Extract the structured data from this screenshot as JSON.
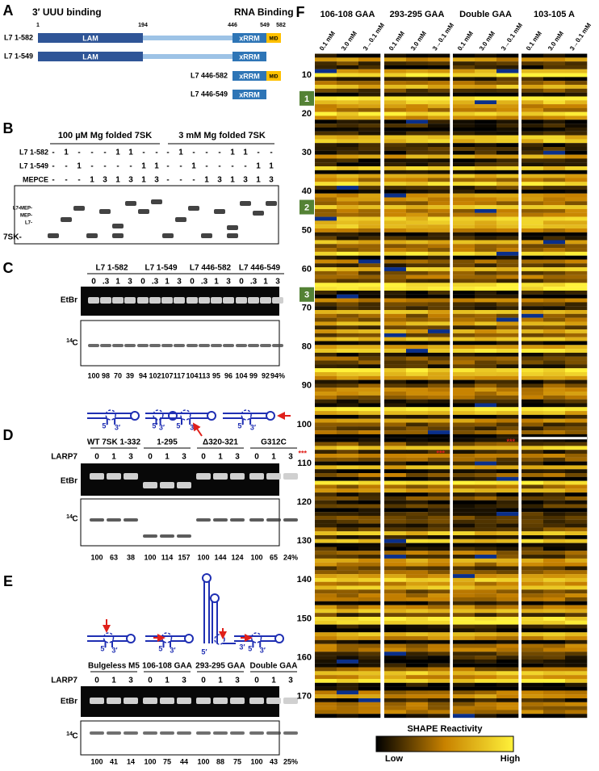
{
  "panelA": {
    "letter": "A",
    "left_label": "3′ UUU binding",
    "right_label": "RNA Binding",
    "positions": [
      "1",
      "194",
      "446",
      "549",
      "582"
    ],
    "constructs": [
      {
        "name": "L7 1-582",
        "domains": [
          "LAM",
          "xRRM",
          "MID"
        ]
      },
      {
        "name": "L7 1-549",
        "domains": [
          "LAM",
          "xRRM"
        ]
      },
      {
        "name": "L7 446-582",
        "domains": [
          "xRRM",
          "MID"
        ]
      },
      {
        "name": "L7 446-549",
        "domains": [
          "xRRM"
        ]
      }
    ]
  },
  "panelB": {
    "letter": "B",
    "groups": [
      "100 µM Mg folded 7SK",
      "3 mM Mg folded 7SK"
    ],
    "rows": [
      {
        "label": "L7 1-582",
        "cells": [
          "-",
          "1",
          "-",
          "-",
          "-",
          "1",
          "1",
          "-",
          "-",
          "-",
          "1",
          "-",
          "-",
          "-",
          "1",
          "1",
          "-",
          "-"
        ]
      },
      {
        "label": "L7 1-549",
        "cells": [
          "-",
          "-",
          "1",
          "-",
          "-",
          "-",
          "-",
          "1",
          "1",
          "-",
          "-",
          "1",
          "-",
          "-",
          "-",
          "-",
          "1",
          "1"
        ]
      },
      {
        "label": "MEPCE",
        "cells": [
          "-",
          "-",
          "-",
          "1",
          "3",
          "1",
          "3",
          "1",
          "3",
          "-",
          "-",
          "-",
          "1",
          "3",
          "1",
          "3",
          "1",
          "3"
        ]
      }
    ],
    "gel_labels": [
      "L7•MEP-",
      "MEP-",
      "L7-",
      "7SK-"
    ]
  },
  "panelC": {
    "letter": "C",
    "groups": [
      "L7 1-582",
      "L7 1-549",
      "L7 446-582",
      "L7 446-549"
    ],
    "lanes": [
      "0",
      ".3",
      "1",
      "3"
    ],
    "stain": "EtBr",
    "isotope_mass": "14",
    "isotope_element": "C",
    "values": [
      "100",
      "98",
      "70",
      "39",
      "94",
      "102",
      "107",
      "117",
      "104",
      "113",
      "95",
      "96",
      "104",
      "99",
      "92",
      "94%"
    ]
  },
  "panelD": {
    "letter": "D",
    "groups": [
      "WT 7SK 1-332",
      "1-295",
      "Δ320-321",
      "G312C"
    ],
    "protein": "LARP7",
    "lanes": [
      "0",
      "1",
      "3"
    ],
    "five": "5′",
    "three": "3′",
    "values": [
      "100",
      "63",
      "38",
      "100",
      "114",
      "157",
      "100",
      "144",
      "124",
      "100",
      "65",
      "24%"
    ]
  },
  "panelE": {
    "letter": "E",
    "groups": [
      "Bulgeless M5",
      "106-108 GAA",
      "293-295 GAA",
      "Double GAA"
    ],
    "values": [
      "100",
      "41",
      "14",
      "100",
      "75",
      "44",
      "100",
      "88",
      "75",
      "100",
      "43",
      "25%"
    ]
  },
  "panelF": {
    "letter": "F",
    "columns": [
      "106-108 GAA",
      "293-295 GAA",
      "Double GAA",
      "103-105 A"
    ],
    "conditions": [
      "0.1 mM",
      "3.0 mM",
      "3→0.1 mM"
    ],
    "residue_ticks": [
      "10",
      "20",
      "30",
      "40",
      "50",
      "60",
      "70",
      "80",
      "90",
      "100",
      "110",
      "120",
      "130",
      "140",
      "150",
      "160",
      "170"
    ],
    "regions": [
      "1",
      "2",
      "3"
    ],
    "mutation_mark": "***",
    "colorbar_title": "SHAPE Reactivity",
    "low": "Low",
    "high": "High"
  }
}
